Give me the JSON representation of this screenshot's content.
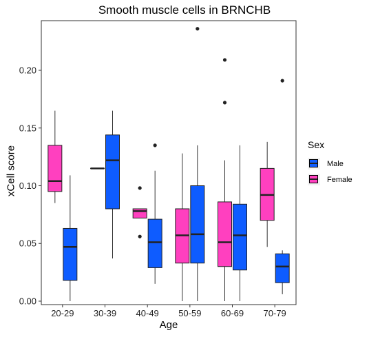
{
  "chart_data": {
    "type": "boxplot",
    "title": "Smooth muscle cells in BRNCHB",
    "xlabel": "Age",
    "ylabel": "xCell score",
    "categories": [
      "20-29",
      "30-39",
      "40-49",
      "50-59",
      "60-69",
      "70-79"
    ],
    "y_ticks": [
      0.0,
      0.05,
      0.1,
      0.15,
      0.2
    ],
    "y_tick_labels": [
      "0.00",
      "0.05",
      "0.10",
      "0.15",
      "0.20"
    ],
    "ylim": [
      -0.003,
      0.243
    ],
    "legend": {
      "title": "Sex",
      "position": "right"
    },
    "series": [
      {
        "name": "Male",
        "color": "#0e5cff",
        "boxes": [
          {
            "category": "20-29",
            "min": 0.0,
            "q1": 0.018,
            "median": 0.047,
            "q3": 0.063,
            "max": 0.109,
            "outliers": []
          },
          {
            "category": "30-39",
            "min": 0.037,
            "q1": 0.08,
            "median": 0.122,
            "q3": 0.144,
            "max": 0.165,
            "outliers": []
          },
          {
            "category": "40-49",
            "min": 0.015,
            "q1": 0.029,
            "median": 0.051,
            "q3": 0.071,
            "max": 0.113,
            "outliers": [
              0.135
            ]
          },
          {
            "category": "50-59",
            "min": 0.0,
            "q1": 0.033,
            "median": 0.058,
            "q3": 0.1,
            "max": 0.135,
            "outliers": [
              0.236
            ]
          },
          {
            "category": "60-69",
            "min": 0.0,
            "q1": 0.027,
            "median": 0.057,
            "q3": 0.084,
            "max": 0.135,
            "outliers": []
          },
          {
            "category": "70-79",
            "min": 0.006,
            "q1": 0.016,
            "median": 0.03,
            "q3": 0.041,
            "max": 0.044,
            "outliers": [
              0.191
            ]
          }
        ]
      },
      {
        "name": "Female",
        "color": "#ff40bf",
        "boxes": [
          {
            "category": "20-29",
            "min": 0.085,
            "q1": 0.095,
            "median": 0.104,
            "q3": 0.135,
            "max": 0.165,
            "outliers": []
          },
          {
            "category": "30-39",
            "min": 0.115,
            "q1": 0.115,
            "median": 0.115,
            "q3": 0.115,
            "max": 0.115,
            "outliers": []
          },
          {
            "category": "40-49",
            "min": 0.072,
            "q1": 0.072,
            "median": 0.078,
            "q3": 0.08,
            "max": 0.08,
            "outliers": [
              0.098,
              0.056
            ]
          },
          {
            "category": "50-59",
            "min": 0.0,
            "q1": 0.033,
            "median": 0.057,
            "q3": 0.08,
            "max": 0.128,
            "outliers": []
          },
          {
            "category": "60-69",
            "min": 0.0,
            "q1": 0.03,
            "median": 0.051,
            "q3": 0.086,
            "max": 0.122,
            "outliers": [
              0.209,
              0.172
            ]
          },
          {
            "category": "70-79",
            "min": 0.047,
            "q1": 0.07,
            "median": 0.092,
            "q3": 0.115,
            "max": 0.138,
            "outliers": []
          }
        ]
      }
    ],
    "grid": false,
    "background": "#ffffff"
  }
}
